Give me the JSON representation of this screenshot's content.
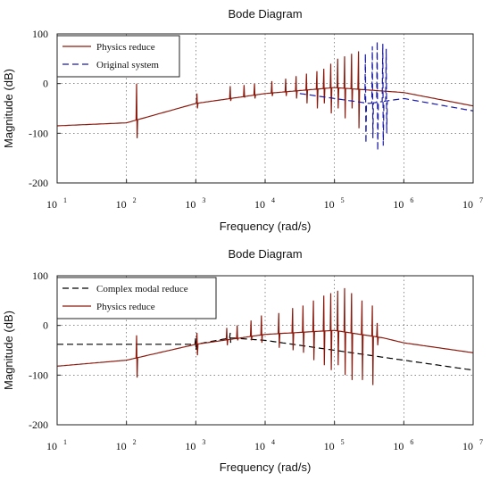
{
  "chart_data": [
    {
      "type": "line",
      "title": "Bode Diagram",
      "xlabel": "Frequency  (rad/s)",
      "ylabel": "Magnitude (dB)",
      "xscale": "log",
      "xlim": [
        10,
        10000000
      ],
      "ylim": [
        -200,
        100
      ],
      "x_ticks": [
        {
          "base": "10",
          "exp": "1"
        },
        {
          "base": "10",
          "exp": "2"
        },
        {
          "base": "10",
          "exp": "3"
        },
        {
          "base": "10",
          "exp": "4"
        },
        {
          "base": "10",
          "exp": "5"
        },
        {
          "base": "10",
          "exp": "6"
        },
        {
          "base": "10",
          "exp": "7"
        }
      ],
      "y_ticks": [
        "100",
        "0",
        "-100",
        "-200"
      ],
      "grid": true,
      "legend_position": "top-left",
      "series": [
        {
          "name": "Physics reduce",
          "color": "#8b1a0e",
          "style": "solid",
          "base": [
            [
              1.0,
              -85
            ],
            [
              2.0,
              -79
            ],
            [
              3.0,
              -40
            ],
            [
              4.0,
              -20
            ],
            [
              5.0,
              -8
            ],
            [
              6.0,
              -18
            ],
            [
              7.0,
              -45
            ]
          ],
          "spikes": [
            {
              "x": 2.15,
              "up": 0,
              "down": -110
            },
            {
              "x": 3.02,
              "up": -20,
              "down": -50
            },
            {
              "x": 3.5,
              "up": -5,
              "down": -35
            },
            {
              "x": 3.7,
              "up": -3,
              "down": -28
            },
            {
              "x": 3.85,
              "up": 0,
              "down": -30
            },
            {
              "x": 4.1,
              "up": 5,
              "down": -25
            },
            {
              "x": 4.3,
              "up": 10,
              "down": -25
            },
            {
              "x": 4.45,
              "up": 15,
              "down": -30
            },
            {
              "x": 4.6,
              "up": 20,
              "down": -40
            },
            {
              "x": 4.75,
              "up": 25,
              "down": -50
            },
            {
              "x": 4.85,
              "up": 30,
              "down": -40
            },
            {
              "x": 4.95,
              "up": 40,
              "down": -60
            },
            {
              "x": 5.05,
              "up": 50,
              "down": -50
            },
            {
              "x": 5.15,
              "up": 55,
              "down": -70
            },
            {
              "x": 5.25,
              "up": 60,
              "down": -50
            },
            {
              "x": 5.35,
              "up": 65,
              "down": -90
            }
          ]
        },
        {
          "name": "Original system",
          "color": "#1a1aa8",
          "style": "dashed",
          "base": [
            [
              4.5,
              -20
            ],
            [
              5.5,
              -40
            ],
            [
              6.0,
              -30
            ],
            [
              7.0,
              -55
            ]
          ],
          "spikes": [
            {
              "x": 5.45,
              "up": 60,
              "down": -120
            },
            {
              "x": 5.55,
              "up": 75,
              "down": -110
            },
            {
              "x": 5.62,
              "up": 85,
              "down": -135
            },
            {
              "x": 5.7,
              "up": 80,
              "down": -125
            },
            {
              "x": 5.75,
              "up": 70,
              "down": -100
            }
          ]
        }
      ]
    },
    {
      "type": "line",
      "title": "Bode Diagram",
      "xlabel": "Frequency  (rad/s)",
      "ylabel": "Magnitude (dB)",
      "xscale": "log",
      "xlim": [
        10,
        10000000
      ],
      "ylim": [
        -200,
        100
      ],
      "x_ticks": [
        {
          "base": "10",
          "exp": "1"
        },
        {
          "base": "10",
          "exp": "2"
        },
        {
          "base": "10",
          "exp": "3"
        },
        {
          "base": "10",
          "exp": "4"
        },
        {
          "base": "10",
          "exp": "5"
        },
        {
          "base": "10",
          "exp": "6"
        },
        {
          "base": "10",
          "exp": "7"
        }
      ],
      "y_ticks": [
        "100",
        "0",
        "-100",
        "-200"
      ],
      "grid": true,
      "legend_position": "top-left",
      "series": [
        {
          "name": "Complex modal reduce",
          "color": "#000000",
          "style": "dashed",
          "base": [
            [
              1.0,
              -38
            ],
            [
              3.0,
              -38
            ],
            [
              3.5,
              -25
            ],
            [
              4.0,
              -30
            ],
            [
              5.0,
              -50
            ],
            [
              6.0,
              -70
            ],
            [
              7.0,
              -90
            ]
          ],
          "spikes": [
            {
              "x": 3.0,
              "up": -25,
              "down": -50
            },
            {
              "x": 3.5,
              "up": -15,
              "down": -35
            }
          ]
        },
        {
          "name": "Physics reduce",
          "color": "#8b1a0e",
          "style": "solid",
          "base": [
            [
              1.0,
              -82
            ],
            [
              2.0,
              -70
            ],
            [
              3.0,
              -38
            ],
            [
              4.0,
              -18
            ],
            [
              5.0,
              -10
            ],
            [
              5.7,
              -25
            ],
            [
              6.0,
              -35
            ],
            [
              7.0,
              -55
            ]
          ],
          "spikes": [
            {
              "x": 2.15,
              "up": -20,
              "down": -105
            },
            {
              "x": 3.02,
              "up": -15,
              "down": -60
            },
            {
              "x": 3.45,
              "up": -5,
              "down": -40
            },
            {
              "x": 3.6,
              "up": 0,
              "down": -30
            },
            {
              "x": 3.8,
              "up": 10,
              "down": -30
            },
            {
              "x": 3.95,
              "up": 20,
              "down": -35
            },
            {
              "x": 4.2,
              "up": 25,
              "down": -45
            },
            {
              "x": 4.4,
              "up": 35,
              "down": -50
            },
            {
              "x": 4.55,
              "up": 40,
              "down": -55
            },
            {
              "x": 4.7,
              "up": 50,
              "down": -70
            },
            {
              "x": 4.85,
              "up": 60,
              "down": -80
            },
            {
              "x": 4.95,
              "up": 65,
              "down": -90
            },
            {
              "x": 5.05,
              "up": 70,
              "down": -80
            },
            {
              "x": 5.15,
              "up": 75,
              "down": -100
            },
            {
              "x": 5.25,
              "up": 65,
              "down": -110
            },
            {
              "x": 5.4,
              "up": 50,
              "down": -110
            },
            {
              "x": 5.55,
              "up": 40,
              "down": -120
            },
            {
              "x": 5.62,
              "up": 5,
              "down": -40
            }
          ]
        }
      ]
    }
  ]
}
